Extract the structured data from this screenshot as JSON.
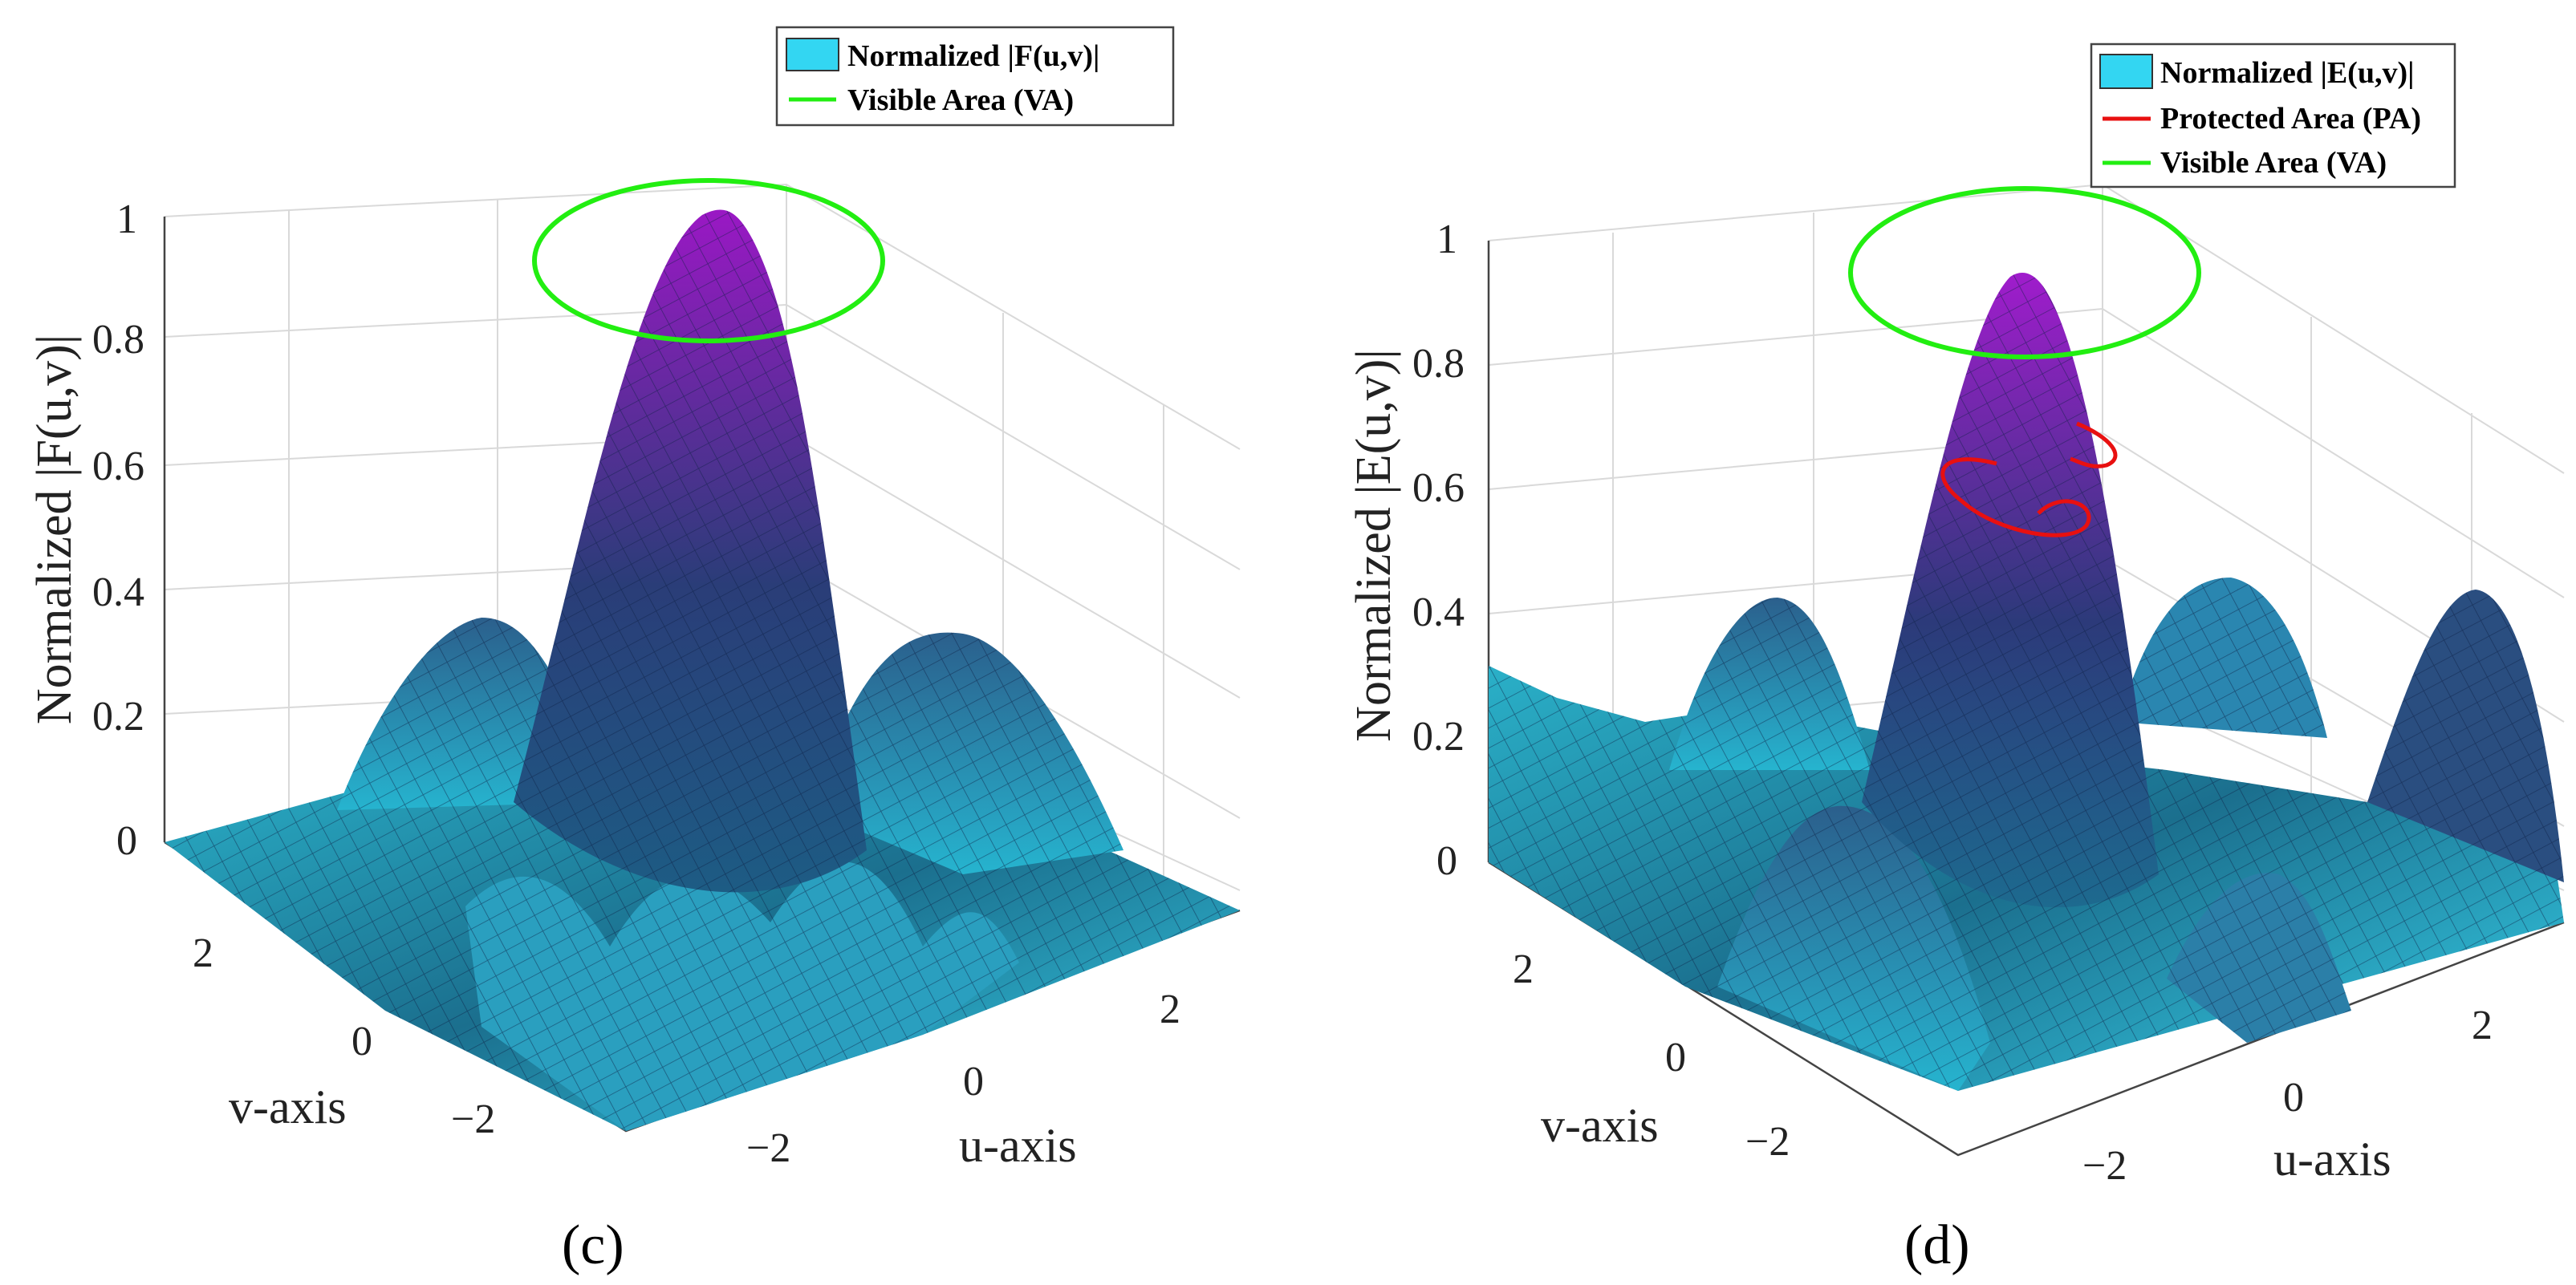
{
  "chart_data": [
    {
      "type": "surface3d",
      "caption": "(c)",
      "zlabel": "Normalized |F(u,v)|",
      "xlabel": "u-axis",
      "ylabel": "v-axis",
      "zlim": [
        0,
        1
      ],
      "z_ticks": [
        "0",
        "0.2",
        "0.4",
        "0.6",
        "0.8",
        "1"
      ],
      "u_ticks": [
        "−2",
        "0",
        "2"
      ],
      "v_ticks": [
        "−2",
        "0",
        "2"
      ],
      "legend": [
        {
          "label": "Normalized |F(u,v)|",
          "kind": "patch",
          "color": "#33d6f2"
        },
        {
          "label": "Visible Area (VA)",
          "kind": "line",
          "color": "#22ee11"
        }
      ],
      "surface": {
        "peak": 1.0,
        "colormap": [
          "#27c6dc",
          "#1f3d6e",
          "#8a16b3"
        ]
      },
      "visible_area": {
        "z": 0.95,
        "color": "#22ee11"
      }
    },
    {
      "type": "surface3d",
      "caption": "(d)",
      "zlabel": "Normalized |E(u,v)|",
      "xlabel": "u-axis",
      "ylabel": "v-axis",
      "zlim": [
        0,
        1
      ],
      "z_ticks": [
        "0",
        "0.2",
        "0.4",
        "0.6",
        "0.8",
        "1"
      ],
      "u_ticks": [
        "−2",
        "0",
        "2"
      ],
      "v_ticks": [
        "−2",
        "0",
        "2"
      ],
      "legend": [
        {
          "label": "Normalized |E(u,v)|",
          "kind": "patch",
          "color": "#33d6f2"
        },
        {
          "label": "Protected Area (PA)",
          "kind": "line",
          "color": "#e81010"
        },
        {
          "label": "Visible Area (VA)",
          "kind": "line",
          "color": "#22ee11"
        }
      ],
      "surface": {
        "peak": 0.95,
        "colormap": [
          "#27c6dc",
          "#1f3d6e",
          "#8a16b3"
        ]
      },
      "visible_area": {
        "z": 0.95,
        "color": "#22ee11"
      },
      "protected_area": {
        "z": 0.62,
        "color": "#e81010"
      }
    }
  ]
}
